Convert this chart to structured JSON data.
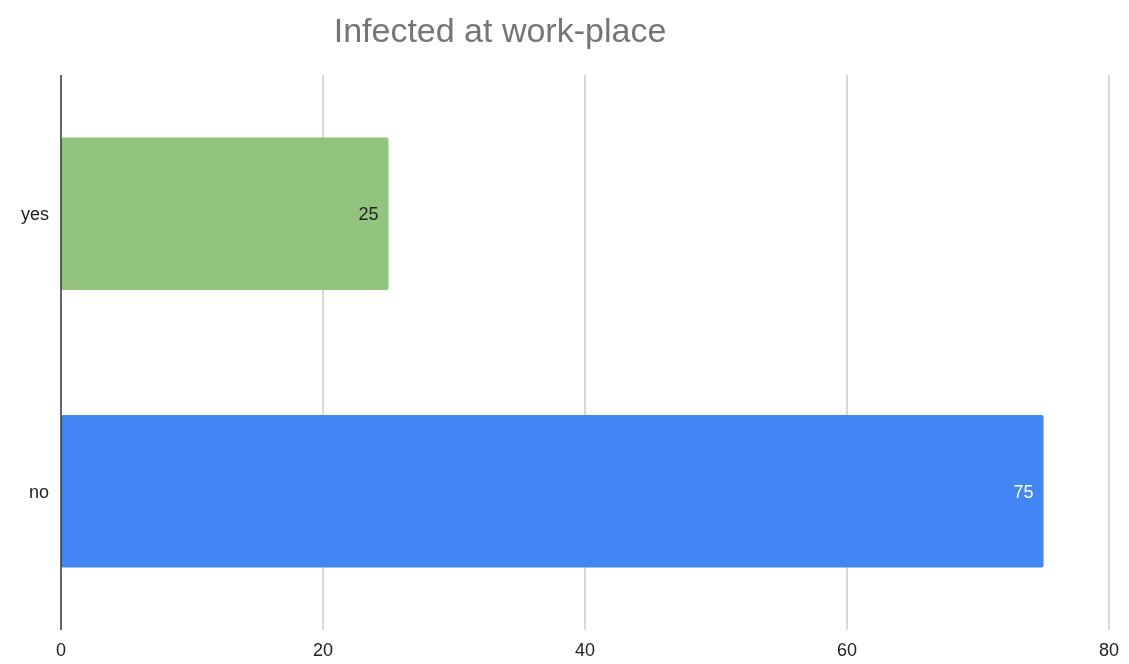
{
  "chart_data": {
    "type": "bar",
    "orientation": "horizontal",
    "title": "Infected at work-place",
    "categories": [
      "yes",
      "no"
    ],
    "values": [
      25,
      75
    ],
    "colors": [
      "#93c47d",
      "#4285f4"
    ],
    "xlim": [
      0,
      80
    ],
    "xticks": [
      0,
      20,
      40,
      60,
      80
    ],
    "grid": "x",
    "data_labels": true
  }
}
